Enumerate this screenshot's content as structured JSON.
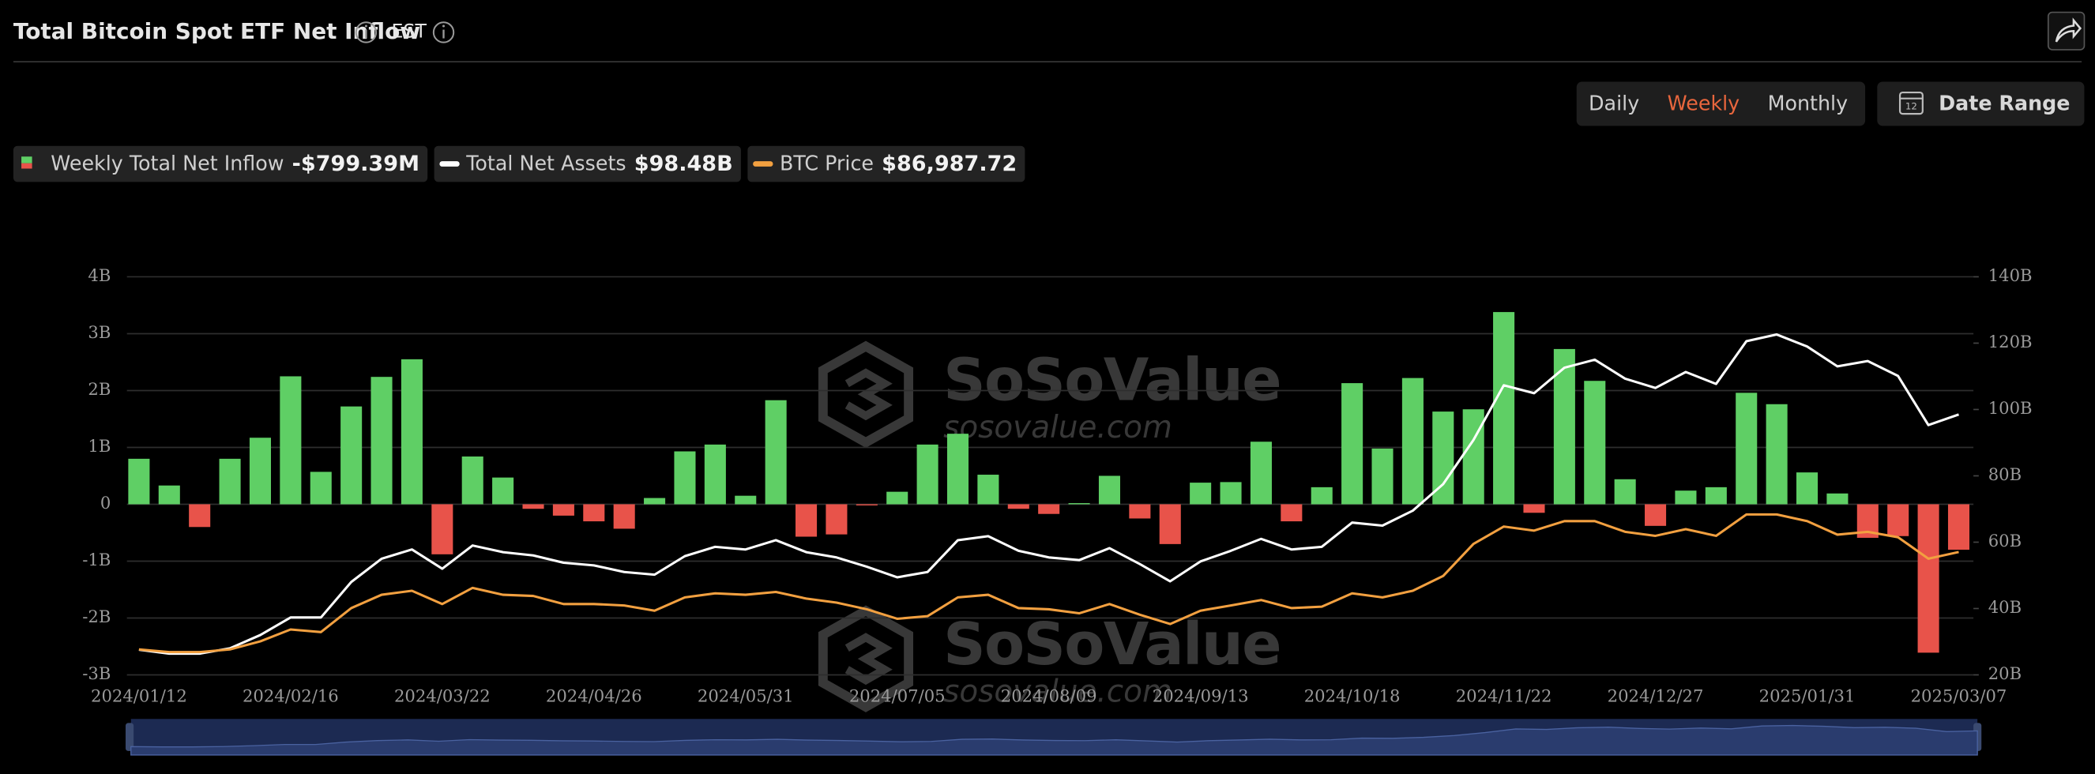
{
  "header": {
    "title": "Total Bitcoin Spot ETF Net Inflow",
    "timezone": "EST",
    "periods": [
      "Daily",
      "Weekly",
      "Monthly"
    ],
    "active_period": 1,
    "date_range": "Date Range"
  },
  "watermark": {
    "brand": "SoSoValue",
    "site": "sosovalue.com"
  },
  "chart_data": {
    "type": "bar",
    "categories": [
      "2024/01/12",
      null,
      null,
      null,
      null,
      "2024/02/16",
      null,
      null,
      null,
      null,
      "2024/03/22",
      null,
      null,
      null,
      null,
      "2024/04/26",
      null,
      null,
      null,
      null,
      "2024/05/31",
      null,
      null,
      null,
      null,
      "2024/07/05",
      null,
      null,
      null,
      null,
      "2024/08/09",
      null,
      null,
      null,
      null,
      "2024/09/13",
      null,
      null,
      null,
      null,
      "2024/10/18",
      null,
      null,
      null,
      null,
      "2024/11/22",
      null,
      null,
      null,
      null,
      "2024/12/27",
      null,
      null,
      null,
      null,
      "2025/01/31",
      null,
      null,
      null,
      null,
      "2025/03/07"
    ],
    "series": [
      {
        "name": "Weekly Total Net Inflow",
        "type": "bar",
        "color": "#5fcf65",
        "negative_color": "#e8534a",
        "summary": "-$799.39M",
        "values": [
          0.8,
          0.33,
          -0.4,
          0.8,
          1.17,
          2.25,
          0.57,
          1.72,
          2.24,
          2.55,
          -0.88,
          0.84,
          0.47,
          -0.08,
          -0.2,
          -0.3,
          -0.43,
          0.11,
          0.93,
          1.05,
          0.15,
          1.83,
          -0.57,
          -0.53,
          -0.02,
          0.22,
          1.05,
          1.24,
          0.52,
          -0.08,
          -0.17,
          0.02,
          0.5,
          -0.25,
          -0.7,
          0.38,
          0.39,
          1.1,
          -0.3,
          0.3,
          2.13,
          0.98,
          2.22,
          1.63,
          1.67,
          3.38,
          -0.15,
          2.73,
          2.17,
          0.44,
          -0.38,
          0.24,
          0.3,
          1.96,
          1.76,
          0.56,
          0.19,
          -0.59,
          -0.56,
          -2.61,
          -0.79939
        ]
      },
      {
        "name": "Total Net Assets",
        "type": "line",
        "axis": "y2",
        "color": "#ffffff",
        "summary": "$98.48B",
        "values": [
          27.6,
          26.4,
          26.4,
          28,
          32,
          37.3,
          37.3,
          48,
          55,
          57.8,
          52,
          59,
          57,
          56,
          53.8,
          53,
          51,
          50.2,
          55.8,
          58.6,
          57.8,
          60.6,
          57,
          55.4,
          52.6,
          49.4,
          51,
          60.6,
          61.8,
          57.4,
          55.4,
          54.6,
          58.2,
          53.4,
          48.2,
          54.2,
          57.4,
          61,
          57.8,
          58.6,
          65.9,
          65,
          69.5,
          77.5,
          90.8,
          107.3,
          104.9,
          112.6,
          115,
          109.3,
          106.5,
          111.3,
          107.7,
          120.6,
          122.6,
          119,
          113,
          114.6,
          110.1,
          95.3,
          98.48
        ]
      },
      {
        "name": "BTC Price",
        "type": "line",
        "axis": "y3",
        "color": "#f2a040",
        "summary": "$86,987.72",
        "values": [
          46000,
          44900,
          44900,
          46000,
          49400,
          54400,
          53300,
          63400,
          69000,
          70700,
          65100,
          71900,
          69000,
          68500,
          65100,
          65100,
          64500,
          62300,
          67900,
          69600,
          69000,
          70200,
          67400,
          65700,
          62900,
          58900,
          60000,
          67900,
          69000,
          63400,
          62900,
          61200,
          65100,
          60600,
          56700,
          62300,
          64500,
          66800,
          63400,
          64000,
          69600,
          67900,
          70700,
          76900,
          90400,
          97700,
          96000,
          100000,
          100000,
          95500,
          93800,
          96600,
          93800,
          102800,
          102800,
          100000,
          94300,
          95500,
          93200,
          84200,
          86987.72
        ]
      }
    ],
    "ylim": [
      -3,
      4
    ],
    "yticks": [
      {
        "value": -3,
        "label": "-3B"
      },
      {
        "value": -2,
        "label": "-2B"
      },
      {
        "value": -1,
        "label": "-1B"
      },
      0,
      {
        "value": 1,
        "label": "1B"
      },
      {
        "value": 2,
        "label": "2B"
      },
      {
        "value": 3,
        "label": "3B"
      },
      {
        "value": 4,
        "label": "4B"
      }
    ],
    "y2lim": [
      20,
      140
    ],
    "y2ticks": [
      {
        "value": 20,
        "label": "20B"
      },
      {
        "value": 40,
        "label": "40B"
      },
      {
        "value": 60,
        "label": "60B"
      },
      {
        "value": 80,
        "label": "80B"
      },
      {
        "value": 100,
        "label": "100B"
      },
      {
        "value": 120,
        "label": "120B"
      },
      {
        "value": 140,
        "label": "140B"
      }
    ],
    "y3lim": [
      35300,
      202800
    ],
    "grid": true
  }
}
